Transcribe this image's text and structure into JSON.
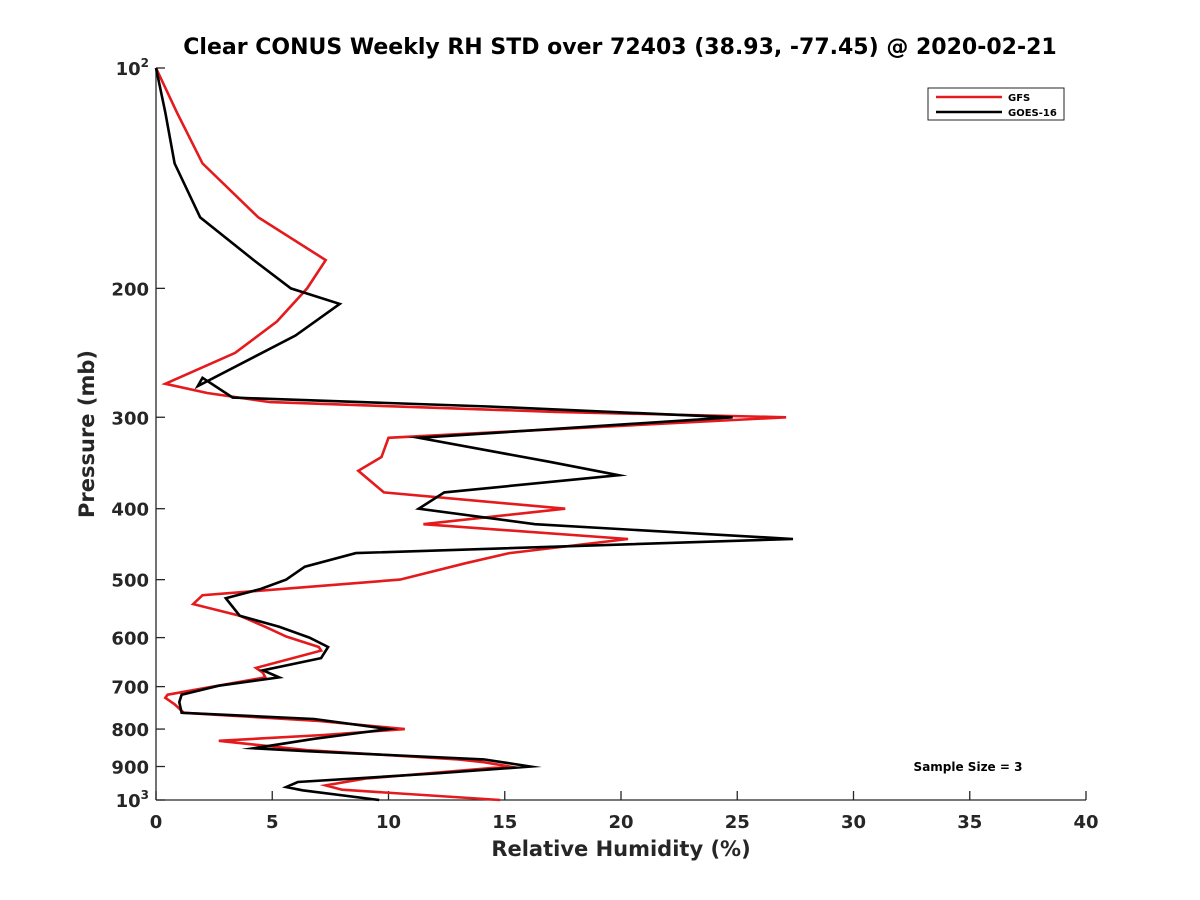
{
  "chart_data": {
    "type": "line",
    "title": "Clear CONUS Weekly RH STD over 72403 (38.93, -77.45) @ 2020-02-21",
    "xlabel": "Relative Humidity (%)",
    "ylabel": "Pressure (mb)",
    "xlim": [
      0,
      40
    ],
    "ylim": [
      100,
      1000
    ],
    "y_scale": "log",
    "y_reversed": true,
    "x_ticks": [
      "0",
      "5",
      "10",
      "15",
      "20",
      "25",
      "30",
      "35",
      "40"
    ],
    "y_ticks": [
      {
        "value": 100,
        "base": "10",
        "exp": "2"
      },
      {
        "value": 200,
        "label": "200"
      },
      {
        "value": 300,
        "label": "300"
      },
      {
        "value": 400,
        "label": "400"
      },
      {
        "value": 500,
        "label": "500"
      },
      {
        "value": 600,
        "label": "600"
      },
      {
        "value": 700,
        "label": "700"
      },
      {
        "value": 800,
        "label": "800"
      },
      {
        "value": 900,
        "label": "900"
      },
      {
        "value": 1000,
        "base": "10",
        "exp": "3"
      }
    ],
    "grid": false,
    "legend_position": "top-right",
    "annotation": "Sample Size = 3",
    "series": [
      {
        "name": "GFS",
        "color": "#e41a1c",
        "points": [
          [
            0,
            100
          ],
          [
            0.9,
            115
          ],
          [
            2.0,
            135
          ],
          [
            4.4,
            160
          ],
          [
            7.3,
            183
          ],
          [
            6.5,
            200
          ],
          [
            5.2,
            222
          ],
          [
            3.4,
            245
          ],
          [
            0.4,
            270
          ],
          [
            2.2,
            278
          ],
          [
            4.9,
            286
          ],
          [
            17.2,
            295
          ],
          [
            27.1,
            300
          ],
          [
            10.0,
            320
          ],
          [
            9.7,
            340
          ],
          [
            8.7,
            355
          ],
          [
            9.8,
            380
          ],
          [
            17.6,
            400
          ],
          [
            11.5,
            420
          ],
          [
            20.3,
            440
          ],
          [
            15.2,
            460
          ],
          [
            13.3,
            475
          ],
          [
            10.5,
            500
          ],
          [
            2.0,
            525
          ],
          [
            1.6,
            540
          ],
          [
            3.6,
            560
          ],
          [
            4.7,
            580
          ],
          [
            5.6,
            598
          ],
          [
            7.0,
            618
          ],
          [
            7.1,
            625
          ],
          [
            4.3,
            660
          ],
          [
            4.6,
            670
          ],
          [
            4.7,
            680
          ],
          [
            2.1,
            703
          ],
          [
            0.5,
            718
          ],
          [
            0.4,
            725
          ],
          [
            0.8,
            740
          ],
          [
            1.2,
            760
          ],
          [
            7.0,
            780
          ],
          [
            10.7,
            800
          ],
          [
            7.2,
            815
          ],
          [
            2.7,
            830
          ],
          [
            6.5,
            855
          ],
          [
            13.0,
            880
          ],
          [
            14.1,
            888
          ],
          [
            15.2,
            900
          ],
          [
            9.0,
            935
          ],
          [
            7.3,
            955
          ],
          [
            8.0,
            968
          ],
          [
            14.8,
            1000
          ]
        ]
      },
      {
        "name": "GOES-16",
        "color": "#000000",
        "points": [
          [
            0,
            100
          ],
          [
            0.4,
            115
          ],
          [
            0.8,
            135
          ],
          [
            1.9,
            160
          ],
          [
            4.2,
            183
          ],
          [
            5.8,
            200
          ],
          [
            7.9,
            210
          ],
          [
            6.0,
            232
          ],
          [
            1.8,
            272
          ],
          [
            2.0,
            265
          ],
          [
            3.3,
            282
          ],
          [
            14.3,
            290
          ],
          [
            24.8,
            300
          ],
          [
            11.3,
            320
          ],
          [
            16.9,
            345
          ],
          [
            19.9,
            360
          ],
          [
            12.4,
            380
          ],
          [
            11.3,
            400
          ],
          [
            16.3,
            420
          ],
          [
            27.4,
            440
          ],
          [
            8.6,
            460
          ],
          [
            6.4,
            480
          ],
          [
            5.6,
            500
          ],
          [
            4.5,
            515
          ],
          [
            3.0,
            530
          ],
          [
            3.6,
            560
          ],
          [
            5.3,
            580
          ],
          [
            6.6,
            600
          ],
          [
            7.4,
            618
          ],
          [
            7.1,
            640
          ],
          [
            4.6,
            665
          ],
          [
            5.3,
            680
          ],
          [
            2.7,
            698
          ],
          [
            1.1,
            718
          ],
          [
            1.0,
            735
          ],
          [
            1.1,
            760
          ],
          [
            6.8,
            775
          ],
          [
            10.0,
            800
          ],
          [
            8.7,
            810
          ],
          [
            6.8,
            825
          ],
          [
            4.2,
            850
          ],
          [
            6.6,
            858
          ],
          [
            14.1,
            880
          ],
          [
            16.1,
            900
          ],
          [
            12.0,
            920
          ],
          [
            6.1,
            945
          ],
          [
            5.6,
            960
          ],
          [
            6.3,
            970
          ],
          [
            9.6,
            1000
          ]
        ]
      }
    ]
  }
}
